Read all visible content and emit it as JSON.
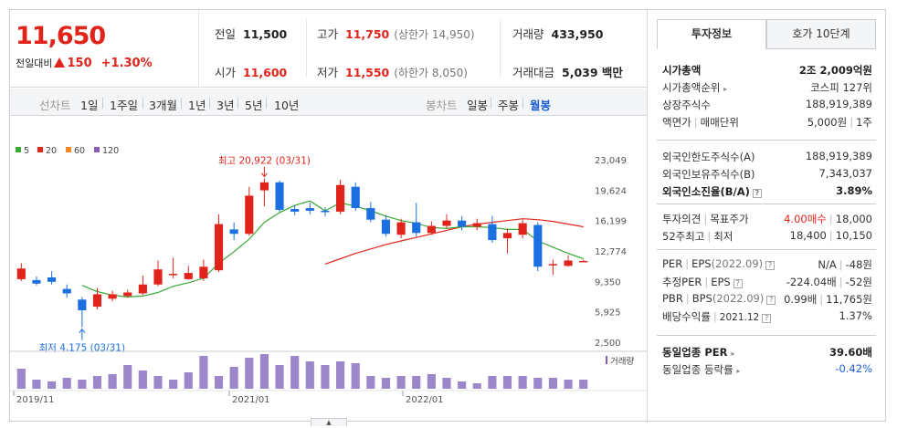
{
  "summary": {
    "price": "11,650",
    "change_label": "전일대비",
    "change": "150",
    "change_pct": "+1.30%",
    "prev_close_label": "전일",
    "prev_close": "11,500",
    "high_label": "고가",
    "high": "11,750",
    "upper_limit": "(상한가 14,950)",
    "volume_label": "거래량",
    "volume": "433,950",
    "open_label": "시가",
    "open": "11,600",
    "low_label": "저가",
    "low": "11,550",
    "lower_limit": "(하한가 8,050)",
    "amount_label": "거래대금",
    "amount": "5,039 백만"
  },
  "toolbar": {
    "line_chart_label": "선차트",
    "periods": [
      "1일",
      "1주일",
      "3개월",
      "1년",
      "3년",
      "5년",
      "10년"
    ],
    "candle_chart_label": "봉차트",
    "candles": [
      "일봉",
      "주봉",
      "월봉"
    ],
    "selected_candle": "월봉"
  },
  "chart_data": {
    "type": "candlestick",
    "legend": [
      {
        "name": "5",
        "color": "#3aa935"
      },
      {
        "name": "20",
        "color": "#e1241b"
      },
      {
        "name": "60",
        "color": "#f08a24"
      },
      {
        "name": "120",
        "color": "#8a5cb8"
      }
    ],
    "y_ticks": [
      "23,049",
      "19,624",
      "16,199",
      "12,774",
      "9,350",
      "5,925",
      "2,500"
    ],
    "y_range": [
      2500,
      23049
    ],
    "x_labels": [
      "2019/11",
      "2021/01",
      "2022/01"
    ],
    "volume_label": "거래량",
    "high_annotation": "최고 20,922 (03/31)",
    "low_annotation": "최저 4,175 (03/31)",
    "candles": [
      {
        "o": 9600,
        "c": 10800,
        "h": 11400,
        "l": 9400
      },
      {
        "o": 9500,
        "c": 9100,
        "h": 9900,
        "l": 8900
      },
      {
        "o": 9800,
        "c": 9300,
        "h": 10500,
        "l": 9000
      },
      {
        "o": 8500,
        "c": 8000,
        "h": 9000,
        "l": 7500
      },
      {
        "o": 7300,
        "c": 6100,
        "h": 7600,
        "l": 4175
      },
      {
        "o": 6500,
        "c": 7900,
        "h": 8600,
        "l": 6200
      },
      {
        "o": 7400,
        "c": 7900,
        "h": 8300,
        "l": 7100
      },
      {
        "o": 7700,
        "c": 8100,
        "h": 8400,
        "l": 7500
      },
      {
        "o": 8000,
        "c": 9000,
        "h": 10000,
        "l": 7800
      },
      {
        "o": 9000,
        "c": 10700,
        "h": 11700,
        "l": 8800
      },
      {
        "o": 10200,
        "c": 10200,
        "h": 12000,
        "l": 9700
      },
      {
        "o": 9600,
        "c": 10300,
        "h": 11100,
        "l": 9500
      },
      {
        "o": 9700,
        "c": 11000,
        "h": 11800,
        "l": 9400
      },
      {
        "o": 10600,
        "c": 15800,
        "h": 16900,
        "l": 10400
      },
      {
        "o": 15200,
        "c": 14700,
        "h": 16000,
        "l": 14000
      },
      {
        "o": 14700,
        "c": 19000,
        "h": 20000,
        "l": 14500
      },
      {
        "o": 19600,
        "c": 20500,
        "h": 20922,
        "l": 17800
      },
      {
        "o": 20500,
        "c": 17400,
        "h": 20700,
        "l": 17200
      },
      {
        "o": 17500,
        "c": 17200,
        "h": 17900,
        "l": 16800
      },
      {
        "o": 17600,
        "c": 17300,
        "h": 18200,
        "l": 16900
      },
      {
        "o": 17300,
        "c": 17200,
        "h": 17700,
        "l": 16700
      },
      {
        "o": 17200,
        "c": 20200,
        "h": 20800,
        "l": 16900
      },
      {
        "o": 20000,
        "c": 17600,
        "h": 20500,
        "l": 17300
      },
      {
        "o": 17600,
        "c": 16300,
        "h": 18300,
        "l": 16000
      },
      {
        "o": 16300,
        "c": 14700,
        "h": 16800,
        "l": 14400
      },
      {
        "o": 14600,
        "c": 16000,
        "h": 16400,
        "l": 14200
      },
      {
        "o": 16000,
        "c": 14800,
        "h": 18200,
        "l": 14400
      },
      {
        "o": 14800,
        "c": 15600,
        "h": 16100,
        "l": 14600
      },
      {
        "o": 15600,
        "c": 16200,
        "h": 16900,
        "l": 15300
      },
      {
        "o": 16200,
        "c": 15500,
        "h": 16700,
        "l": 15100
      },
      {
        "o": 15500,
        "c": 15900,
        "h": 16400,
        "l": 15100
      },
      {
        "o": 15800,
        "c": 14000,
        "h": 16700,
        "l": 13700
      },
      {
        "o": 14200,
        "c": 14800,
        "h": 15300,
        "l": 12500
      },
      {
        "o": 14600,
        "c": 15900,
        "h": 16300,
        "l": 14200
      },
      {
        "o": 15700,
        "c": 11000,
        "h": 16000,
        "l": 10500
      },
      {
        "o": 11200,
        "c": 11300,
        "h": 11800,
        "l": 10100
      },
      {
        "o": 11100,
        "c": 11700,
        "h": 12300,
        "l": 11000
      },
      {
        "o": 11650,
        "c": 11650,
        "h": 11800,
        "l": 11550
      }
    ],
    "ma5": [
      null,
      null,
      null,
      null,
      8900,
      8200,
      7800,
      7600,
      7700,
      8100,
      8800,
      9200,
      9700,
      11400,
      12700,
      14100,
      16000,
      17100,
      17900,
      18400,
      17300,
      18200,
      17800,
      17300,
      16700,
      16200,
      15900,
      15400,
      15300,
      15500,
      15500,
      15400,
      15200,
      15200,
      13900,
      13200,
      12500,
      11900
    ],
    "ma20": [
      null,
      null,
      null,
      null,
      null,
      null,
      null,
      null,
      null,
      null,
      null,
      null,
      null,
      null,
      null,
      null,
      null,
      null,
      null,
      null,
      11300,
      11900,
      12500,
      13000,
      13500,
      13900,
      14300,
      14700,
      15100,
      15500,
      15800,
      16000,
      16200,
      16400,
      16300,
      16100,
      15800,
      15500
    ],
    "volumes": [
      22,
      10,
      8,
      12,
      10,
      14,
      16,
      26,
      20,
      14,
      10,
      18,
      36,
      14,
      24,
      34,
      38,
      26,
      36,
      30,
      26,
      30,
      28,
      14,
      12,
      14,
      14,
      16,
      12,
      8,
      6,
      14,
      14,
      14,
      12,
      12,
      10,
      10
    ]
  },
  "panel": {
    "tab_invest": "투자정보",
    "tab_quote": "호가 10단계",
    "market_cap_label": "시가총액",
    "market_cap": "2조 2,009억원",
    "cap_rank_label": "시가총액순위",
    "cap_rank": "코스피 127위",
    "shares_label": "상장주식수",
    "shares": "188,919,389",
    "face_label": "액면가",
    "trade_unit_label": "매매단위",
    "face": "5,000원",
    "trade_unit": "1주",
    "foreign_limit_label": "외국인한도주식수(A)",
    "foreign_limit": "188,919,389",
    "foreign_hold_label": "외국인보유주식수(B)",
    "foreign_hold": "7,343,037",
    "foreign_ratio_label": "외국인소진율(B/A)",
    "foreign_ratio": "3.89%",
    "opinion_label": "투자의견",
    "target_label": "목표주가",
    "opinion": "4.00매수",
    "target": "18,000",
    "week52_label": "52주최고",
    "week52_low_label": "최저",
    "week52_high": "18,400",
    "week52_low": "10,150",
    "per_label": "PER",
    "eps_label": "EPS",
    "per_date": "(2022.09)",
    "per": "N/A",
    "eps": "-48원",
    "est_per_label": "추정PER",
    "est_eps_label": "EPS",
    "est_per": "-224.04배",
    "est_eps": "-52원",
    "pbr_label": "PBR",
    "bps_label": "BPS",
    "pbr_date": "(2022.09)",
    "pbr": "0.99배",
    "bps": "11,765원",
    "div_label": "배당수익률",
    "div_date": "2021.12",
    "div": "1.37%",
    "sector_per_label": "동일업종 PER",
    "sector_per": "39.60배",
    "sector_rate_label": "동일업종 등락률",
    "sector_rate": "-0.42%"
  }
}
